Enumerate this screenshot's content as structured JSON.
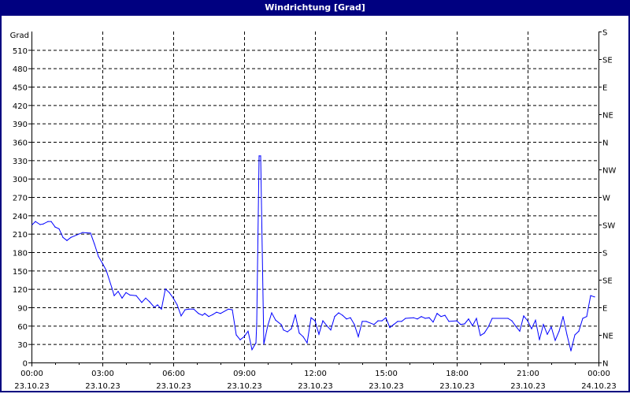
{
  "window": {
    "title": "Windrichtung [Grad]"
  },
  "colors": {
    "titlebar": "#000080",
    "series": "#0000ff",
    "grid": "#000000"
  },
  "chart_data": {
    "type": "line",
    "title": "Windrichtung [Grad]",
    "ylabel": "Grad",
    "ylim": [
      0,
      540
    ],
    "yticks": [
      0,
      30,
      60,
      90,
      120,
      150,
      180,
      210,
      240,
      270,
      300,
      330,
      360,
      390,
      420,
      450,
      480,
      510
    ],
    "y2ticks": [
      {
        "value": 0,
        "label": "N"
      },
      {
        "value": 45,
        "label": "NE"
      },
      {
        "value": 90,
        "label": "E"
      },
      {
        "value": 135,
        "label": "SE"
      },
      {
        "value": 180,
        "label": "S"
      },
      {
        "value": 225,
        "label": "SW"
      },
      {
        "value": 270,
        "label": "W"
      },
      {
        "value": 315,
        "label": "NW"
      },
      {
        "value": 360,
        "label": "N"
      },
      {
        "value": 405,
        "label": "NE"
      },
      {
        "value": 450,
        "label": "E"
      },
      {
        "value": 495,
        "label": "SE"
      },
      {
        "value": 540,
        "label": "S"
      }
    ],
    "xlim": [
      "23.10.23 00:00",
      "24.10.23 00:00"
    ],
    "xticks": [
      {
        "time": "00:00",
        "date": "23.10.23"
      },
      {
        "time": "03:00",
        "date": "23.10.23"
      },
      {
        "time": "06:00",
        "date": "23.10.23"
      },
      {
        "time": "09:00",
        "date": "23.10.23"
      },
      {
        "time": "12:00",
        "date": "23.10.23"
      },
      {
        "time": "15:00",
        "date": "23.10.23"
      },
      {
        "time": "18:00",
        "date": "23.10.23"
      },
      {
        "time": "21:00",
        "date": "23.10.23"
      },
      {
        "time": "00:00",
        "date": "24.10.23"
      }
    ],
    "grid": true,
    "series": [
      {
        "color": "#0000ff",
        "points": [
          [
            "00:02",
            225
          ],
          [
            "00:10",
            230
          ],
          [
            "00:22",
            225
          ],
          [
            "00:30",
            226
          ],
          [
            "00:42",
            230
          ],
          [
            "00:50",
            230
          ],
          [
            "01:00",
            221
          ],
          [
            "01:10",
            218
          ],
          [
            "01:20",
            204
          ],
          [
            "01:30",
            199
          ],
          [
            "01:40",
            204
          ],
          [
            "02:10",
            212
          ],
          [
            "02:30",
            211
          ],
          [
            "02:40",
            193
          ],
          [
            "02:50",
            173
          ],
          [
            "03:00",
            162
          ],
          [
            "03:10",
            150
          ],
          [
            "03:24",
            122
          ],
          [
            "03:30",
            109
          ],
          [
            "03:40",
            116
          ],
          [
            "03:50",
            105
          ],
          [
            "04:00",
            114
          ],
          [
            "04:10",
            110
          ],
          [
            "04:26",
            109
          ],
          [
            "04:40",
            98
          ],
          [
            "04:50",
            105
          ],
          [
            "05:00",
            99
          ],
          [
            "05:12",
            90
          ],
          [
            "05:20",
            94
          ],
          [
            "05:30",
            87
          ],
          [
            "05:40",
            120
          ],
          [
            "05:50",
            114
          ],
          [
            "06:00",
            105
          ],
          [
            "06:10",
            94
          ],
          [
            "06:20",
            76
          ],
          [
            "06:30",
            86
          ],
          [
            "06:40",
            87
          ],
          [
            "06:52",
            87
          ],
          [
            "07:04",
            80
          ],
          [
            "07:14",
            77
          ],
          [
            "07:20",
            80
          ],
          [
            "07:30",
            75
          ],
          [
            "07:40",
            78
          ],
          [
            "07:50",
            82
          ],
          [
            "08:00",
            80
          ],
          [
            "08:20",
            87
          ],
          [
            "08:30",
            86
          ],
          [
            "08:40",
            45
          ],
          [
            "08:50",
            37
          ],
          [
            "09:00",
            42
          ],
          [
            "09:10",
            51
          ],
          [
            "09:20",
            21
          ],
          [
            "09:30",
            32
          ],
          [
            "09:32",
            64
          ],
          [
            "09:38",
            337
          ],
          [
            "09:42",
            337
          ],
          [
            "09:50",
            30
          ],
          [
            "10:00",
            60
          ],
          [
            "10:10",
            81
          ],
          [
            "10:20",
            69
          ],
          [
            "10:34",
            62
          ],
          [
            "10:40",
            53
          ],
          [
            "10:50",
            50
          ],
          [
            "11:00",
            55
          ],
          [
            "11:10",
            78
          ],
          [
            "11:20",
            48
          ],
          [
            "11:30",
            42
          ],
          [
            "11:40",
            32
          ],
          [
            "11:50",
            73
          ],
          [
            "12:00",
            68
          ],
          [
            "12:10",
            46
          ],
          [
            "12:20",
            68
          ],
          [
            "12:30",
            60
          ],
          [
            "12:40",
            53
          ],
          [
            "12:50",
            75
          ],
          [
            "13:00",
            81
          ],
          [
            "13:10",
            77
          ],
          [
            "13:20",
            71
          ],
          [
            "13:30",
            73
          ],
          [
            "13:40",
            62
          ],
          [
            "13:50",
            42
          ],
          [
            "14:00",
            67
          ],
          [
            "14:10",
            67
          ],
          [
            "14:30",
            62
          ],
          [
            "14:40",
            68
          ],
          [
            "14:50",
            68
          ],
          [
            "15:00",
            73
          ],
          [
            "15:10",
            57
          ],
          [
            "15:20",
            62
          ],
          [
            "15:30",
            67
          ],
          [
            "15:40",
            67
          ],
          [
            "15:50",
            72
          ],
          [
            "16:10",
            73
          ],
          [
            "16:20",
            71
          ],
          [
            "16:30",
            75
          ],
          [
            "16:40",
            72
          ],
          [
            "16:50",
            73
          ],
          [
            "17:00",
            66
          ],
          [
            "17:10",
            80
          ],
          [
            "17:20",
            75
          ],
          [
            "17:30",
            77
          ],
          [
            "17:40",
            67
          ],
          [
            "18:00",
            68
          ],
          [
            "18:10",
            62
          ],
          [
            "18:20",
            63
          ],
          [
            "18:30",
            71
          ],
          [
            "18:40",
            60
          ],
          [
            "18:50",
            72
          ],
          [
            "19:00",
            44
          ],
          [
            "19:10",
            48
          ],
          [
            "19:20",
            58
          ],
          [
            "19:30",
            72
          ],
          [
            "20:10",
            72
          ],
          [
            "20:20",
            68
          ],
          [
            "20:30",
            59
          ],
          [
            "20:40",
            51
          ],
          [
            "20:50",
            76
          ],
          [
            "21:00",
            68
          ],
          [
            "21:10",
            55
          ],
          [
            "21:20",
            69
          ],
          [
            "21:30",
            37
          ],
          [
            "21:40",
            62
          ],
          [
            "21:50",
            46
          ],
          [
            "22:00",
            58
          ],
          [
            "22:10",
            36
          ],
          [
            "22:20",
            51
          ],
          [
            "22:30",
            75
          ],
          [
            "22:40",
            45
          ],
          [
            "22:50",
            19
          ],
          [
            "23:00",
            45
          ],
          [
            "23:10",
            51
          ],
          [
            "23:20",
            72
          ],
          [
            "23:30",
            75
          ],
          [
            "23:40",
            109
          ],
          [
            "23:50",
            107
          ]
        ]
      }
    ]
  }
}
